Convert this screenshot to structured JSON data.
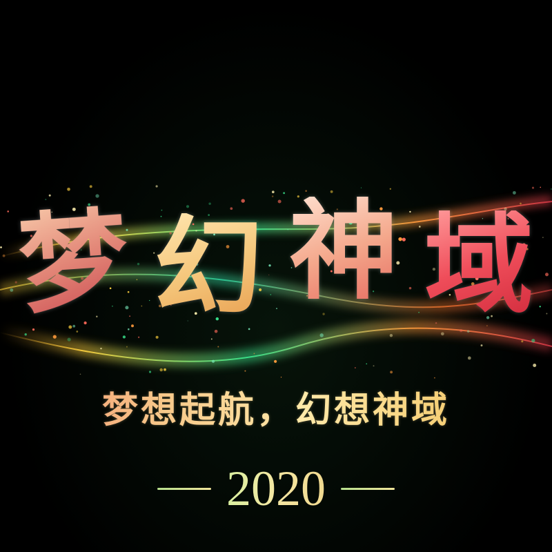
{
  "poster": {
    "title_chars": [
      "梦",
      "幻",
      "神",
      "域"
    ],
    "subtitle": "梦想起航，幻想神域",
    "year": "2020"
  },
  "colors": {
    "background": "#000000",
    "ribbon_green": "#39e28b",
    "ribbon_yellow": "#ffd23f",
    "ribbon_orange": "#ff7a30",
    "ribbon_red": "#e23a4a",
    "year_gradient_start": "#d9f0a0",
    "year_gradient_end": "#f0d98f"
  }
}
